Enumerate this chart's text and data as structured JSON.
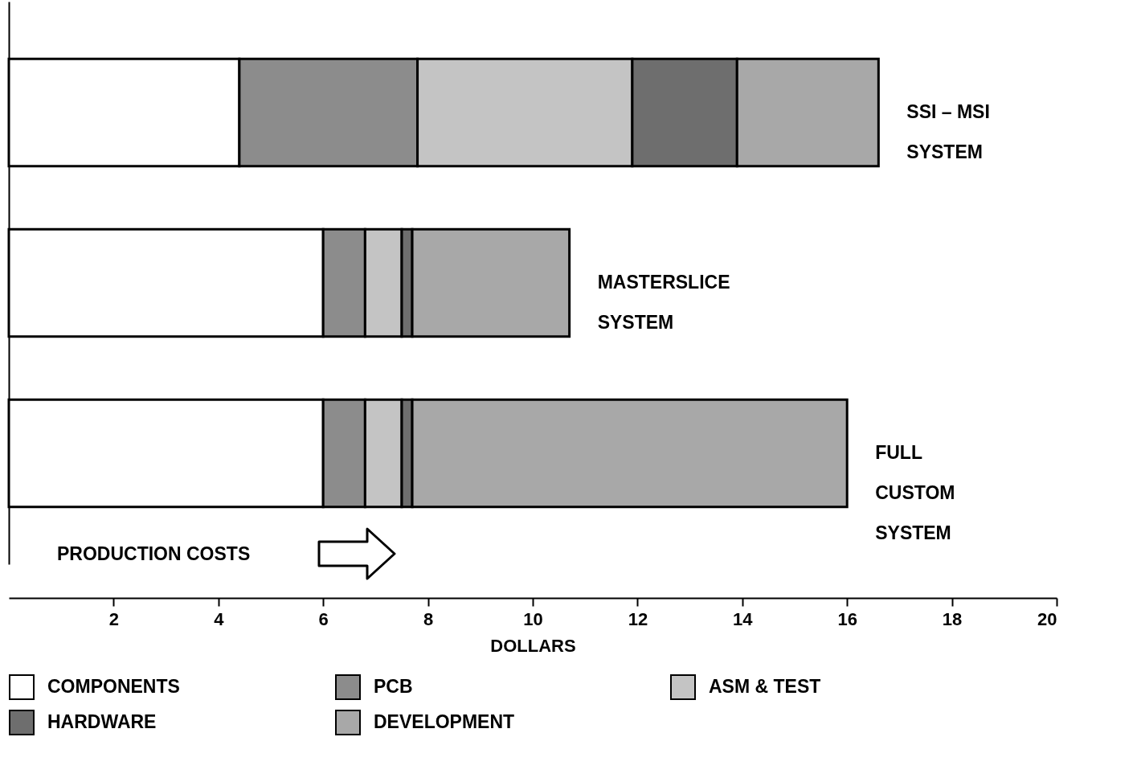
{
  "chart_data": {
    "type": "bar",
    "orientation": "horizontal",
    "stacked": true,
    "categories": [
      "SSI – MSI\nSYSTEM",
      "MASTERSLICE\nSYSTEM",
      "FULL\nCUSTOM\nSYSTEM"
    ],
    "series": [
      {
        "name": "COMPONENTS",
        "color": "#ffffff",
        "values": [
          4.4,
          6.0,
          6.0
        ]
      },
      {
        "name": "PCB",
        "color": "#8c8c8c",
        "values": [
          3.4,
          0.8,
          0.8
        ]
      },
      {
        "name": "ASM & TEST",
        "color": "#c4c4c4",
        "values": [
          4.1,
          0.7,
          0.7
        ]
      },
      {
        "name": "HARDWARE",
        "color": "#6e6e6e",
        "values": [
          2.0,
          0.2,
          0.2
        ]
      },
      {
        "name": "DEVELOPMENT",
        "color": "#a8a8a8",
        "values": [
          2.7,
          3.0,
          8.3
        ]
      }
    ],
    "xlabel": "DOLLARS",
    "xlim": [
      0,
      20
    ],
    "xticks": [
      2,
      4,
      6,
      8,
      10,
      12,
      14,
      16,
      18,
      20
    ],
    "tick_labels": "x",
    "legend": "bottom",
    "grid": false,
    "annotations": [
      "PRODUCTION COSTS"
    ]
  }
}
